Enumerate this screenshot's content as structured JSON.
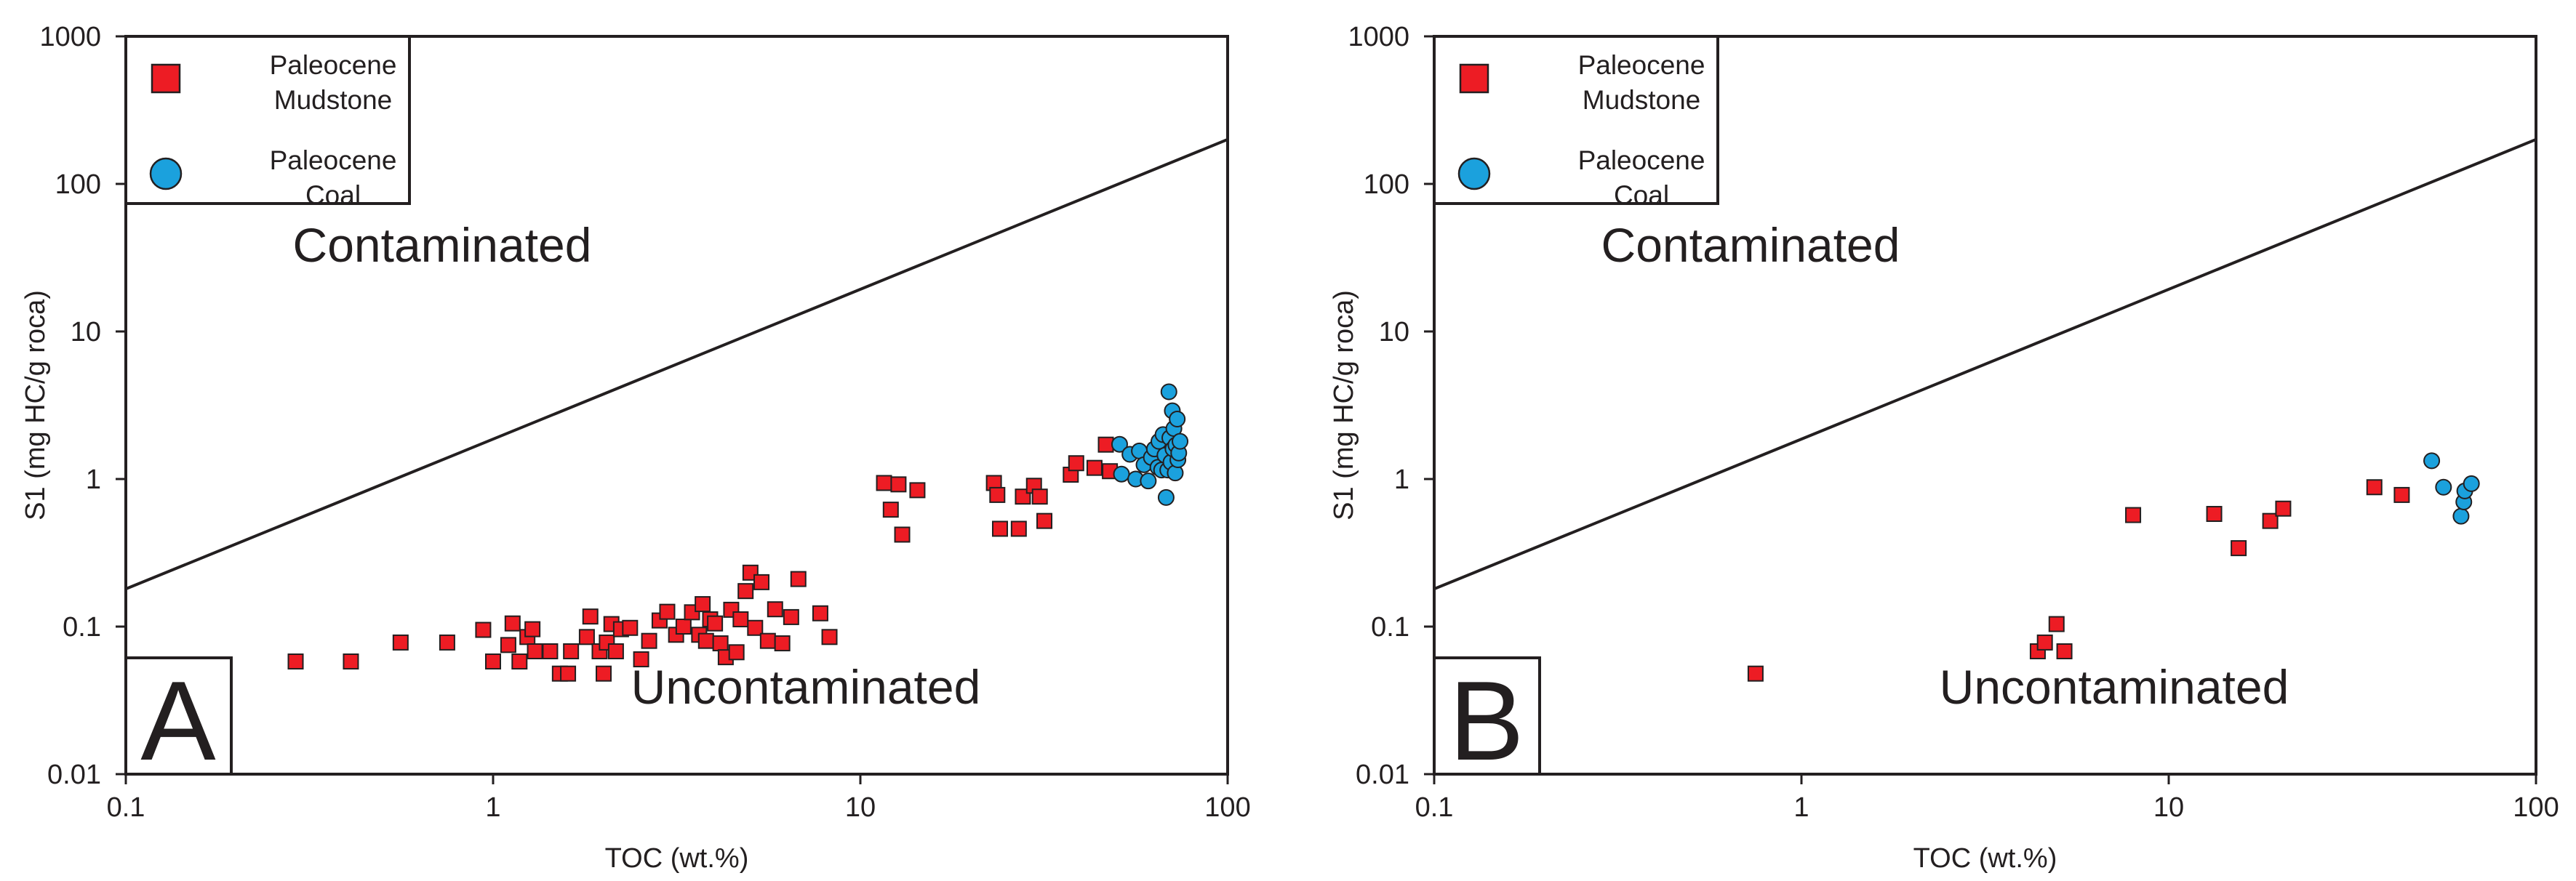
{
  "chart_data": [
    {
      "type": "scatter",
      "panel": "A",
      "xlabel": "TOC (wt.%)",
      "ylabel": "S1 (mg HC/g roca)",
      "xscale": "log",
      "yscale": "log",
      "xlim": [
        0.1,
        100
      ],
      "ylim": [
        0.01,
        1000
      ],
      "xticks": [
        "0.1",
        "1",
        "10",
        "100"
      ],
      "yticks": [
        "0.01",
        "0.1",
        "1",
        "10",
        "100",
        "1000"
      ],
      "region_labels": {
        "upper": "Contaminated",
        "lower": "Uncontaminated"
      },
      "boundary_line": {
        "x": [
          0.1,
          100
        ],
        "y": [
          0.18,
          200
        ]
      },
      "legend": [
        {
          "name": "Paleocene Mudstone",
          "lines": [
            "Paleocene",
            "Mudstone"
          ],
          "marker": "square",
          "color": "#ed1c24"
        },
        {
          "name": "Paleocene Coal",
          "lines": [
            "Paleocene",
            "Coal"
          ],
          "marker": "circle",
          "color": "#1ba1dd"
        }
      ],
      "series": [
        {
          "name": "Paleocene Mudstone",
          "points": [
            [
              0.29,
              0.058
            ],
            [
              0.41,
              0.058
            ],
            [
              0.56,
              0.078
            ],
            [
              0.75,
              0.078
            ],
            [
              0.94,
              0.095
            ],
            [
              1.0,
              0.058
            ],
            [
              1.1,
              0.075
            ],
            [
              1.13,
              0.105
            ],
            [
              1.18,
              0.058
            ],
            [
              1.24,
              0.085
            ],
            [
              1.28,
              0.096
            ],
            [
              1.3,
              0.068
            ],
            [
              1.43,
              0.068
            ],
            [
              1.52,
              0.048
            ],
            [
              1.6,
              0.048
            ],
            [
              1.63,
              0.068
            ],
            [
              1.8,
              0.085
            ],
            [
              1.84,
              0.117
            ],
            [
              1.95,
              0.068
            ],
            [
              2.0,
              0.048
            ],
            [
              2.04,
              0.078
            ],
            [
              2.1,
              0.104
            ],
            [
              2.16,
              0.068
            ],
            [
              2.23,
              0.096
            ],
            [
              2.36,
              0.098
            ],
            [
              2.53,
              0.06
            ],
            [
              2.66,
              0.08
            ],
            [
              2.84,
              0.11
            ],
            [
              2.98,
              0.126
            ],
            [
              3.15,
              0.088
            ],
            [
              3.3,
              0.1
            ],
            [
              3.48,
              0.125
            ],
            [
              3.64,
              0.088
            ],
            [
              3.72,
              0.142
            ],
            [
              3.8,
              0.08
            ],
            [
              3.9,
              0.112
            ],
            [
              4.02,
              0.105
            ],
            [
              4.16,
              0.077
            ],
            [
              4.3,
              0.062
            ],
            [
              4.45,
              0.13
            ],
            [
              4.6,
              0.067
            ],
            [
              4.72,
              0.112
            ],
            [
              4.87,
              0.174
            ],
            [
              5.02,
              0.232
            ],
            [
              5.17,
              0.098
            ],
            [
              5.38,
              0.2
            ],
            [
              5.6,
              0.08
            ],
            [
              5.86,
              0.131
            ],
            [
              6.13,
              0.077
            ],
            [
              6.48,
              0.116
            ],
            [
              6.78,
              0.21
            ],
            [
              7.78,
              0.123
            ],
            [
              8.24,
              0.085
            ],
            [
              11.6,
              0.94
            ],
            [
              12.1,
              0.62
            ],
            [
              12.7,
              0.92
            ],
            [
              13.0,
              0.42
            ],
            [
              14.3,
              0.84
            ],
            [
              23.1,
              0.94
            ],
            [
              23.6,
              0.78
            ],
            [
              24.0,
              0.46
            ],
            [
              27.0,
              0.46
            ],
            [
              27.7,
              0.76
            ],
            [
              29.7,
              0.9
            ],
            [
              30.8,
              0.76
            ],
            [
              31.7,
              0.52
            ],
            [
              37.4,
              1.07
            ],
            [
              38.7,
              1.28
            ],
            [
              43.4,
              1.19
            ],
            [
              46.6,
              1.71
            ],
            [
              47.8,
              1.13
            ]
          ]
        },
        {
          "name": "Paleocene Coal",
          "points": [
            [
              50.8,
              1.72
            ],
            [
              51.4,
              1.08
            ],
            [
              54.2,
              1.47
            ],
            [
              56.2,
              1.0
            ],
            [
              57.5,
              1.55
            ],
            [
              59.2,
              1.25
            ],
            [
              60.8,
              0.97
            ],
            [
              62.0,
              1.4
            ],
            [
              63.2,
              1.6
            ],
            [
              64.6,
              1.2
            ],
            [
              65.0,
              1.8
            ],
            [
              66.1,
              1.15
            ],
            [
              66.7,
              2.0
            ],
            [
              67.5,
              1.45
            ],
            [
              68.0,
              0.75
            ],
            [
              68.7,
              1.15
            ],
            [
              69.2,
              3.9
            ],
            [
              69.6,
              1.9
            ],
            [
              70.1,
              1.3
            ],
            [
              70.7,
              2.9
            ],
            [
              71.0,
              1.6
            ],
            [
              71.4,
              2.2
            ],
            [
              72.0,
              1.1
            ],
            [
              72.3,
              1.7
            ],
            [
              72.9,
              2.55
            ],
            [
              73.2,
              1.35
            ],
            [
              73.6,
              1.5
            ],
            [
              74.2,
              1.8
            ]
          ]
        }
      ]
    },
    {
      "type": "scatter",
      "panel": "B",
      "xlabel": "TOC (wt.%)",
      "ylabel": "S1 (mg HC/g roca)",
      "xscale": "log",
      "yscale": "log",
      "xlim": [
        0.1,
        100
      ],
      "ylim": [
        0.01,
        1000
      ],
      "xticks": [
        "0.1",
        "1",
        "10",
        "100"
      ],
      "yticks": [
        "0.01",
        "0.1",
        "1",
        "10",
        "100",
        "1000"
      ],
      "region_labels": {
        "upper": "Contaminated",
        "lower": "Uncontaminated"
      },
      "boundary_line": {
        "x": [
          0.1,
          100
        ],
        "y": [
          0.18,
          200
        ]
      },
      "legend": [
        {
          "name": "Paleocene Mudstone",
          "lines": [
            "Paleocene",
            "Mudstone"
          ],
          "marker": "square",
          "color": "#ed1c24"
        },
        {
          "name": "Paleocene Coal",
          "lines": [
            "Paleocene",
            "Coal"
          ],
          "marker": "circle",
          "color": "#1ba1dd"
        }
      ],
      "series": [
        {
          "name": "Paleocene Mudstone",
          "points": [
            [
              0.75,
              0.048
            ],
            [
              4.4,
              0.068
            ],
            [
              4.6,
              0.078
            ],
            [
              4.95,
              0.104
            ],
            [
              5.2,
              0.068
            ],
            [
              8.0,
              0.57
            ],
            [
              13.3,
              0.58
            ],
            [
              15.5,
              0.34
            ],
            [
              18.9,
              0.52
            ],
            [
              20.5,
              0.63
            ],
            [
              36.3,
              0.88
            ],
            [
              43.1,
              0.78
            ]
          ]
        },
        {
          "name": "Paleocene Coal",
          "points": [
            [
              52.0,
              1.33
            ],
            [
              56.0,
              0.88
            ],
            [
              62.5,
              0.56
            ],
            [
              63.6,
              0.7
            ],
            [
              64.0,
              0.83
            ],
            [
              66.7,
              0.93
            ]
          ]
        }
      ]
    }
  ]
}
